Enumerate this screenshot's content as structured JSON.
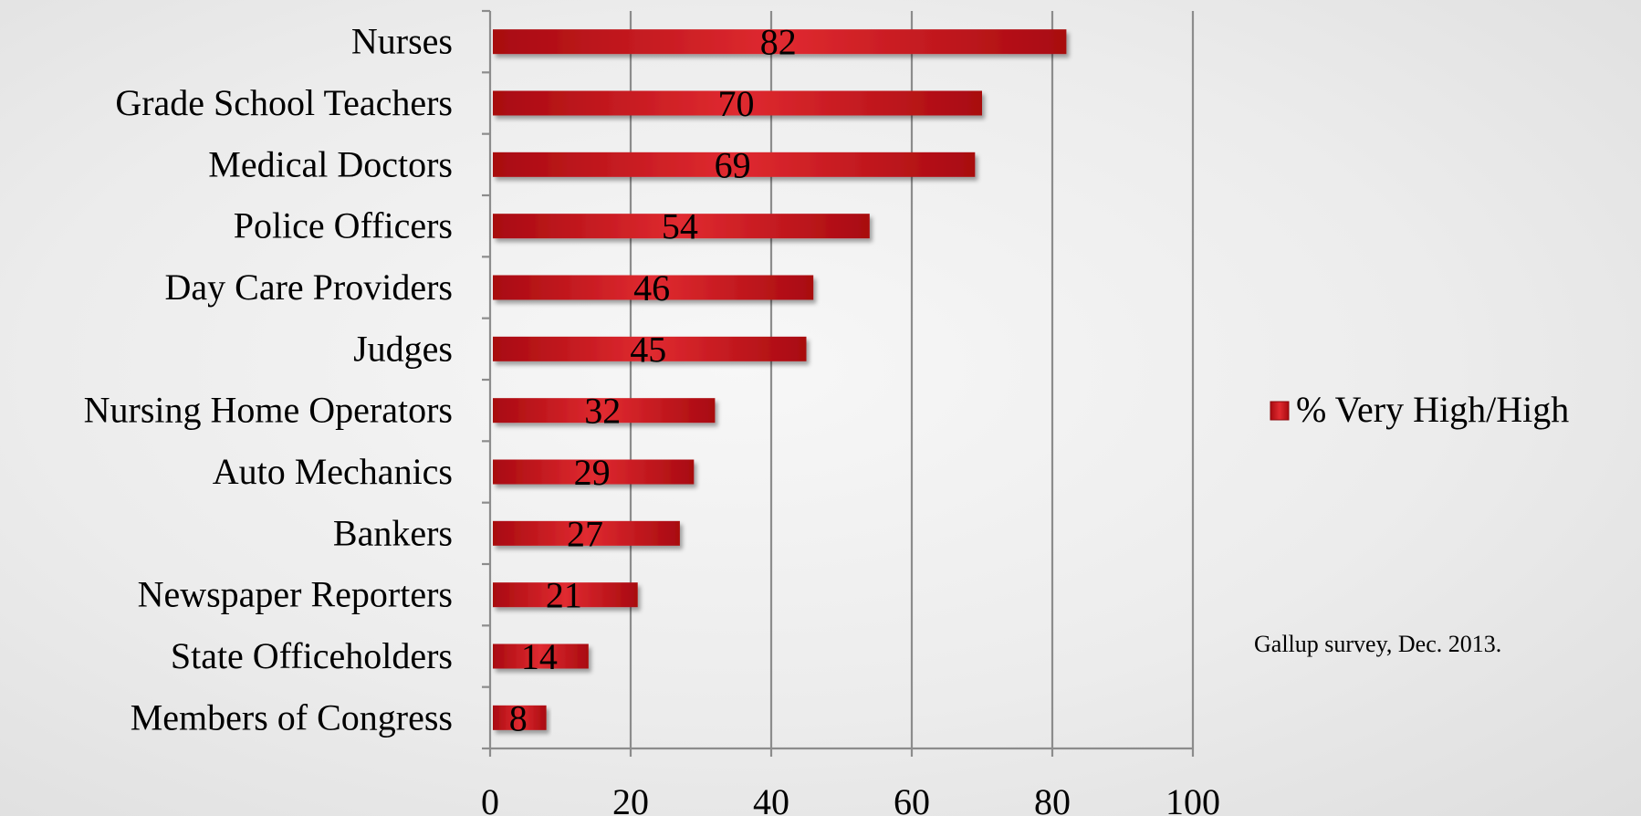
{
  "chart_data": {
    "type": "bar",
    "orientation": "horizontal",
    "categories": [
      "Nurses",
      "Grade School Teachers",
      "Medical Doctors",
      "Police Officers",
      "Day Care Providers",
      "Judges",
      "Nursing Home Operators",
      "Auto Mechanics",
      "Bankers",
      "Newspaper Reporters",
      "State Officeholders",
      "Members of Congress"
    ],
    "series": [
      {
        "name": "% Very High/High",
        "values": [
          82,
          70,
          69,
          54,
          46,
          45,
          32,
          29,
          27,
          21,
          14,
          8
        ]
      }
    ],
    "data_labels": [
      "82",
      "70",
      "69",
      "54",
      "46",
      "45",
      "32",
      "29",
      "27",
      "21",
      "14",
      "8"
    ],
    "xlim": [
      0,
      100
    ],
    "x_ticks": [
      "0",
      "20",
      "40",
      "60",
      "80",
      "100"
    ],
    "grid": "vertical",
    "legend_position": "right",
    "bar_color": "#c8141b"
  },
  "annotation": "Gallup survey, Dec. 2013."
}
